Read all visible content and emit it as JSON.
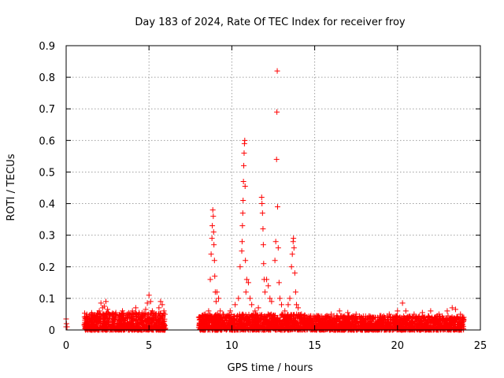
{
  "chart_data": {
    "type": "scatter",
    "title": "Day 183 of 2024, Rate Of TEC Index for receiver froy",
    "xlabel": "GPS time / hours",
    "ylabel": "ROTI / TECUs",
    "xlim": [
      0,
      25
    ],
    "ylim": [
      0,
      0.9
    ],
    "xticks": [
      0,
      5,
      10,
      15,
      20,
      25
    ],
    "yticks": [
      0,
      0.1,
      0.2,
      0.3,
      0.4,
      0.5,
      0.6,
      0.7,
      0.8,
      0.9
    ],
    "xtick_labels": [
      "0",
      "5",
      "10",
      "15",
      "20",
      "25"
    ],
    "ytick_labels": [
      "0",
      "0.1",
      "0.2",
      "0.3",
      "0.4",
      "0.5",
      "0.6",
      "0.7",
      "0.8",
      "0.9"
    ],
    "grid": true,
    "marker": "+",
    "color": "#ff0000",
    "series": [
      {
        "points": [
          [
            0.0,
            0.01
          ],
          [
            0.0,
            0.035
          ],
          [
            0.02,
            0.02
          ],
          [
            0.05,
            0.01
          ],
          [
            1.2,
            0.02
          ],
          [
            1.3,
            0.035
          ],
          [
            1.5,
            0.03
          ],
          [
            1.7,
            0.04
          ],
          [
            1.9,
            0.05
          ],
          [
            2.0,
            0.06
          ],
          [
            2.1,
            0.085
          ],
          [
            2.2,
            0.07
          ],
          [
            2.3,
            0.075
          ],
          [
            2.4,
            0.09
          ],
          [
            2.5,
            0.065
          ],
          [
            2.6,
            0.05
          ],
          [
            2.8,
            0.04
          ],
          [
            3.0,
            0.055
          ],
          [
            3.2,
            0.045
          ],
          [
            3.4,
            0.06
          ],
          [
            3.6,
            0.04
          ],
          [
            3.8,
            0.05
          ],
          [
            4.0,
            0.06
          ],
          [
            4.2,
            0.07
          ],
          [
            4.4,
            0.055
          ],
          [
            4.6,
            0.04
          ],
          [
            4.8,
            0.065
          ],
          [
            4.9,
            0.085
          ],
          [
            5.0,
            0.11
          ],
          [
            5.1,
            0.09
          ],
          [
            5.2,
            0.06
          ],
          [
            5.4,
            0.05
          ],
          [
            5.6,
            0.07
          ],
          [
            5.7,
            0.09
          ],
          [
            5.8,
            0.08
          ],
          [
            5.9,
            0.06
          ],
          [
            8.0,
            0.04
          ],
          [
            8.2,
            0.045
          ],
          [
            8.4,
            0.05
          ],
          [
            8.6,
            0.06
          ],
          [
            8.7,
            0.16
          ],
          [
            8.75,
            0.24
          ],
          [
            8.8,
            0.29
          ],
          [
            8.82,
            0.33
          ],
          [
            8.85,
            0.38
          ],
          [
            8.88,
            0.36
          ],
          [
            8.9,
            0.31
          ],
          [
            8.92,
            0.27
          ],
          [
            8.95,
            0.22
          ],
          [
            8.97,
            0.17
          ],
          [
            9.0,
            0.12
          ],
          [
            9.05,
            0.09
          ],
          [
            9.1,
            0.12
          ],
          [
            9.2,
            0.1
          ],
          [
            9.3,
            0.06
          ],
          [
            9.5,
            0.05
          ],
          [
            9.7,
            0.04
          ],
          [
            9.9,
            0.06
          ],
          [
            10.2,
            0.08
          ],
          [
            10.4,
            0.1
          ],
          [
            10.5,
            0.2
          ],
          [
            10.6,
            0.25
          ],
          [
            10.62,
            0.28
          ],
          [
            10.64,
            0.33
          ],
          [
            10.66,
            0.37
          ],
          [
            10.68,
            0.41
          ],
          [
            10.7,
            0.47
          ],
          [
            10.72,
            0.52
          ],
          [
            10.74,
            0.56
          ],
          [
            10.76,
            0.59
          ],
          [
            10.78,
            0.6
          ],
          [
            10.8,
            0.455
          ],
          [
            10.82,
            0.22
          ],
          [
            10.85,
            0.12
          ],
          [
            10.9,
            0.16
          ],
          [
            11.0,
            0.15
          ],
          [
            11.1,
            0.1
          ],
          [
            11.2,
            0.08
          ],
          [
            11.4,
            0.06
          ],
          [
            11.6,
            0.07
          ],
          [
            11.8,
            0.42
          ],
          [
            11.82,
            0.4
          ],
          [
            11.85,
            0.37
          ],
          [
            11.88,
            0.32
          ],
          [
            11.9,
            0.27
          ],
          [
            11.92,
            0.21
          ],
          [
            11.95,
            0.16
          ],
          [
            12.0,
            0.12
          ],
          [
            12.1,
            0.16
          ],
          [
            12.2,
            0.14
          ],
          [
            12.3,
            0.1
          ],
          [
            12.4,
            0.09
          ],
          [
            12.6,
            0.22
          ],
          [
            12.65,
            0.28
          ],
          [
            12.7,
            0.54
          ],
          [
            12.72,
            0.69
          ],
          [
            12.74,
            0.82
          ],
          [
            12.76,
            0.39
          ],
          [
            12.8,
            0.26
          ],
          [
            12.85,
            0.15
          ],
          [
            12.9,
            0.1
          ],
          [
            13.0,
            0.08
          ],
          [
            13.2,
            0.06
          ],
          [
            13.4,
            0.08
          ],
          [
            13.5,
            0.1
          ],
          [
            13.6,
            0.2
          ],
          [
            13.65,
            0.24
          ],
          [
            13.7,
            0.28
          ],
          [
            13.72,
            0.29
          ],
          [
            13.75,
            0.26
          ],
          [
            13.8,
            0.18
          ],
          [
            13.85,
            0.12
          ],
          [
            13.9,
            0.08
          ],
          [
            14.0,
            0.07
          ],
          [
            14.2,
            0.05
          ],
          [
            14.5,
            0.03
          ],
          [
            15.0,
            0.04
          ],
          [
            15.5,
            0.035
          ],
          [
            16.0,
            0.05
          ],
          [
            16.5,
            0.06
          ],
          [
            17.0,
            0.055
          ],
          [
            17.5,
            0.05
          ],
          [
            18.0,
            0.03
          ],
          [
            18.5,
            0.035
          ],
          [
            19.0,
            0.045
          ],
          [
            19.5,
            0.05
          ],
          [
            20.0,
            0.06
          ],
          [
            20.3,
            0.085
          ],
          [
            20.5,
            0.06
          ],
          [
            21.0,
            0.05
          ],
          [
            21.5,
            0.055
          ],
          [
            22.0,
            0.06
          ],
          [
            22.5,
            0.05
          ],
          [
            23.0,
            0.06
          ],
          [
            23.3,
            0.07
          ],
          [
            23.5,
            0.065
          ],
          [
            23.8,
            0.05
          ],
          [
            24.0,
            0.04
          ]
        ],
        "dense_bands": [
          {
            "x_from": 1.1,
            "x_to": 6.0,
            "y_min": 0.0,
            "y_max": 0.055
          },
          {
            "x_from": 8.0,
            "x_to": 14.5,
            "y_min": 0.0,
            "y_max": 0.05
          },
          {
            "x_from": 14.5,
            "x_to": 24.0,
            "y_min": 0.0,
            "y_max": 0.045
          }
        ]
      }
    ]
  }
}
